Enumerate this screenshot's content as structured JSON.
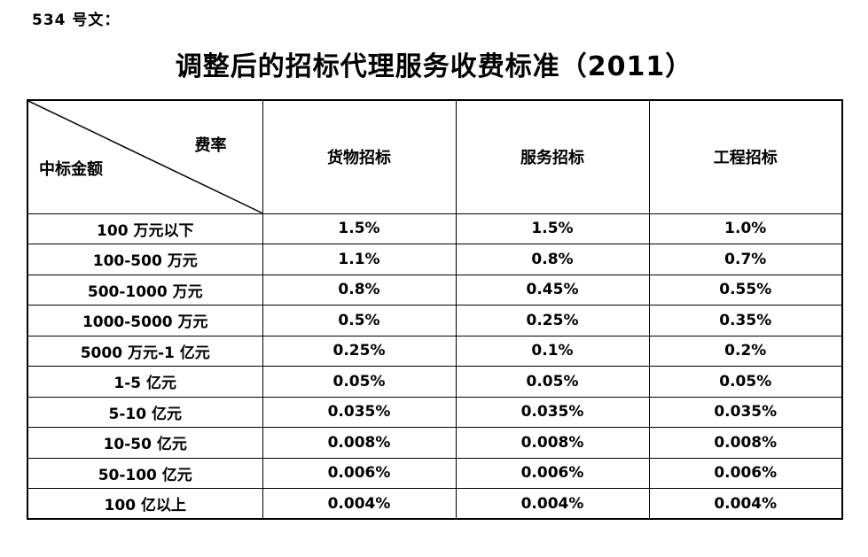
{
  "doc": {
    "ref_label": "534 号文：",
    "title": "调整后的招标代理服务收费标准（2011）"
  },
  "table": {
    "corner": {
      "top_right": "费率",
      "bottom_left": "中标金额"
    },
    "columns": [
      "货物招标",
      "服务招标",
      "工程招标"
    ],
    "rows": [
      {
        "label": "100 万元以下",
        "values": [
          "1.5%",
          "1.5%",
          "1.0%"
        ]
      },
      {
        "label": "100-500 万元",
        "values": [
          "1.1%",
          "0.8%",
          "0.7%"
        ]
      },
      {
        "label": "500-1000 万元",
        "values": [
          "0.8%",
          "0.45%",
          "0.55%"
        ]
      },
      {
        "label": "1000-5000 万元",
        "values": [
          "0.5%",
          "0.25%",
          "0.35%"
        ]
      },
      {
        "label": "5000 万元-1 亿元",
        "values": [
          "0.25%",
          "0.1%",
          "0.2%"
        ]
      },
      {
        "label": "1-5 亿元",
        "values": [
          "0.05%",
          "0.05%",
          "0.05%"
        ]
      },
      {
        "label": "5-10 亿元",
        "values": [
          "0.035%",
          "0.035%",
          "0.035%"
        ]
      },
      {
        "label": "10-50 亿元",
        "values": [
          "0.008%",
          "0.008%",
          "0.008%"
        ]
      },
      {
        "label": "50-100 亿元",
        "values": [
          "0.006%",
          "0.006%",
          "0.006%"
        ]
      },
      {
        "label": "100 亿以上",
        "values": [
          "0.004%",
          "0.004%",
          "0.004%"
        ]
      }
    ]
  },
  "colors": {
    "ink": "#000000",
    "paper": "#ffffff"
  }
}
